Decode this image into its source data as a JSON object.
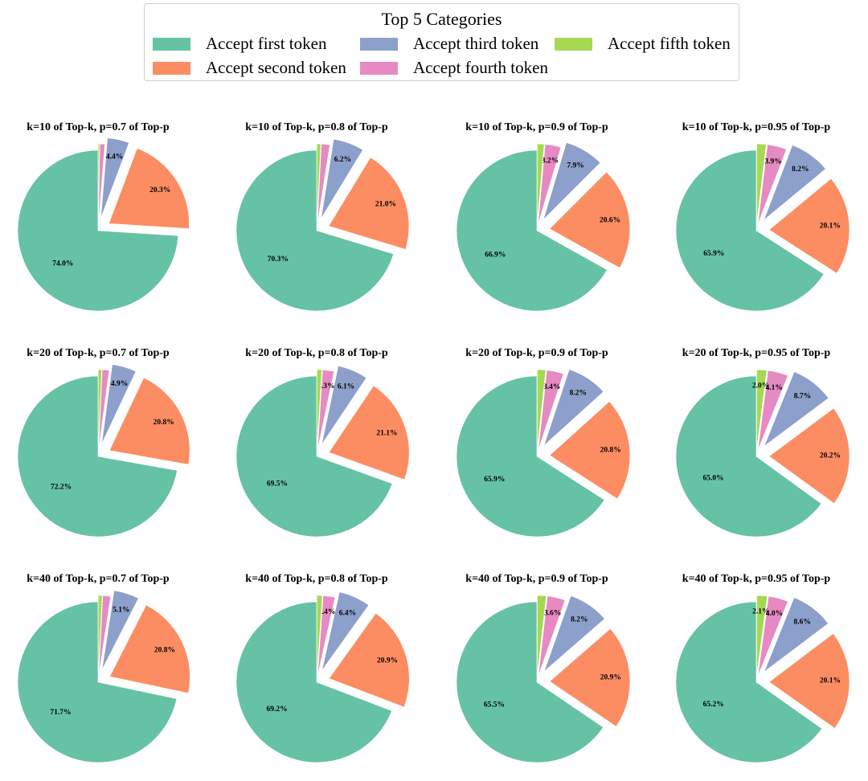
{
  "legend": {
    "title": "Top 5 Categories",
    "entries": [
      {
        "label": "Accept first token",
        "color": "#66c2a5"
      },
      {
        "label": "Accept second token",
        "color": "#fc8d62"
      },
      {
        "label": "Accept third token",
        "color": "#8da0cb"
      },
      {
        "label": "Accept fourth token",
        "color": "#e78ac3"
      },
      {
        "label": "Accept fifth token",
        "color": "#a6d854"
      }
    ]
  },
  "chart_data": [
    {
      "type": "pie",
      "title": "k=10 of Top-k, p=0.7 of Top-p",
      "labels": [
        "Accept first token",
        "Accept second token",
        "Accept third token",
        "Accept fourth token",
        "Accept fifth token"
      ],
      "values": [
        74.0,
        20.3,
        4.4,
        1.0,
        0.3
      ],
      "data_labels": [
        "74.0%",
        "20.3%",
        "4.4%",
        "",
        ""
      ]
    },
    {
      "type": "pie",
      "title": "k=10 of Top-k, p=0.8 of Top-p",
      "labels": [
        "Accept first token",
        "Accept second token",
        "Accept third token",
        "Accept fourth token",
        "Accept fifth token"
      ],
      "values": [
        70.3,
        21.0,
        6.2,
        1.7,
        0.8
      ],
      "data_labels": [
        "70.3%",
        "21.0%",
        "6.2%",
        "",
        ""
      ]
    },
    {
      "type": "pie",
      "title": "k=10 of Top-k, p=0.9 of Top-p",
      "labels": [
        "Accept first token",
        "Accept second token",
        "Accept third token",
        "Accept fourth token",
        "Accept fifth token"
      ],
      "values": [
        66.9,
        20.6,
        7.9,
        3.2,
        1.4
      ],
      "data_labels": [
        "66.9%",
        "20.6%",
        "7.9%",
        "3.2%",
        ""
      ]
    },
    {
      "type": "pie",
      "title": "k=10 of Top-k, p=0.95 of Top-p",
      "labels": [
        "Accept first token",
        "Accept second token",
        "Accept third token",
        "Accept fourth token",
        "Accept fifth token"
      ],
      "values": [
        65.9,
        20.1,
        8.2,
        3.9,
        1.9
      ],
      "data_labels": [
        "65.9%",
        "20.1%",
        "8.2%",
        "3.9%",
        ""
      ]
    },
    {
      "type": "pie",
      "title": "k=20 of Top-k, p=0.7 of Top-p",
      "labels": [
        "Accept first token",
        "Accept second token",
        "Accept third token",
        "Accept fourth token",
        "Accept fifth token"
      ],
      "values": [
        72.2,
        20.8,
        4.9,
        1.4,
        0.7
      ],
      "data_labels": [
        "72.2%",
        "20.8%",
        "4.9%",
        "",
        ""
      ]
    },
    {
      "type": "pie",
      "title": "k=20 of Top-k, p=0.8 of Top-p",
      "labels": [
        "Accept first token",
        "Accept second token",
        "Accept third token",
        "Accept fourth token",
        "Accept fifth token"
      ],
      "values": [
        69.5,
        21.1,
        6.1,
        2.3,
        1.0
      ],
      "data_labels": [
        "69.5%",
        "21.1%",
        "6.1%",
        "2.3%",
        ""
      ]
    },
    {
      "type": "pie",
      "title": "k=20 of Top-k, p=0.9 of Top-p",
      "labels": [
        "Accept first token",
        "Accept second token",
        "Accept third token",
        "Accept fourth token",
        "Accept fifth token"
      ],
      "values": [
        65.9,
        20.8,
        8.2,
        3.4,
        1.7
      ],
      "data_labels": [
        "65.9%",
        "20.8%",
        "8.2%",
        "3.4%",
        ""
      ]
    },
    {
      "type": "pie",
      "title": "k=20 of Top-k, p=0.95 of Top-p",
      "labels": [
        "Accept first token",
        "Accept second token",
        "Accept third token",
        "Accept fourth token",
        "Accept fifth token"
      ],
      "values": [
        65.0,
        20.2,
        8.7,
        4.1,
        2.0
      ],
      "data_labels": [
        "65.0%",
        "20.2%",
        "8.7%",
        "4.1%",
        "2.0%"
      ]
    },
    {
      "type": "pie",
      "title": "k=40 of Top-k, p=0.7 of Top-p",
      "labels": [
        "Accept first token",
        "Accept second token",
        "Accept third token",
        "Accept fourth token",
        "Accept fifth token"
      ],
      "values": [
        71.7,
        20.8,
        5.1,
        1.6,
        0.8
      ],
      "data_labels": [
        "71.7%",
        "20.8%",
        "5.1%",
        "",
        ""
      ]
    },
    {
      "type": "pie",
      "title": "k=40 of Top-k, p=0.8 of Top-p",
      "labels": [
        "Accept first token",
        "Accept second token",
        "Accept third token",
        "Accept fourth token",
        "Accept fifth token"
      ],
      "values": [
        69.2,
        20.9,
        6.4,
        2.4,
        1.1
      ],
      "data_labels": [
        "69.2%",
        "20.9%",
        "6.4%",
        "2.4%",
        ""
      ]
    },
    {
      "type": "pie",
      "title": "k=40 of Top-k, p=0.9 of Top-p",
      "labels": [
        "Accept first token",
        "Accept second token",
        "Accept third token",
        "Accept fourth token",
        "Accept fifth token"
      ],
      "values": [
        65.5,
        20.9,
        8.2,
        3.6,
        1.8
      ],
      "data_labels": [
        "65.5%",
        "20.9%",
        "8.2%",
        "3.6%",
        ""
      ]
    },
    {
      "type": "pie",
      "title": "k=40 of Top-k, p=0.95 of Top-p",
      "labels": [
        "Accept first token",
        "Accept second token",
        "Accept third token",
        "Accept fourth token",
        "Accept fifth token"
      ],
      "values": [
        65.2,
        20.1,
        8.6,
        4.0,
        2.1
      ],
      "data_labels": [
        "65.2%",
        "20.1%",
        "8.6%",
        "4.0%",
        "2.1%"
      ]
    }
  ]
}
